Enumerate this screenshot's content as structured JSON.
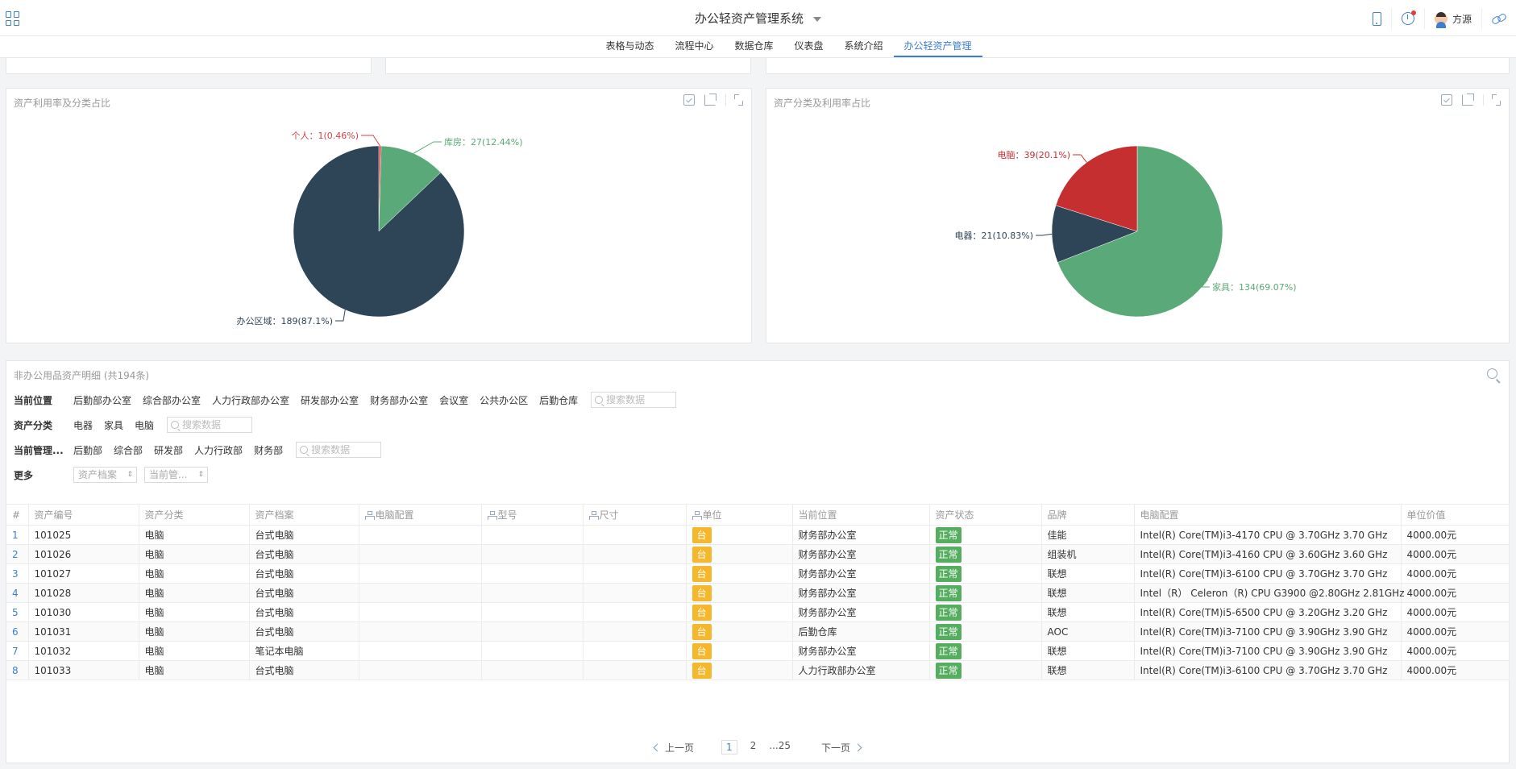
{
  "header": {
    "title": "办公轻资产管理系统",
    "user_name": "方源",
    "more_label": "🔗"
  },
  "nav": {
    "tabs": [
      {
        "label": "表格与动态"
      },
      {
        "label": "流程中心"
      },
      {
        "label": "数据仓库"
      },
      {
        "label": "仪表盘"
      },
      {
        "label": "系统介绍"
      },
      {
        "label": "办公轻资产管理"
      }
    ],
    "active_index": 5
  },
  "colors": {
    "accent": "#3d7fcf",
    "pie_dark": "#2e4457",
    "pie_green": "#5aa978",
    "pie_red": "#c52f2f",
    "unit_tag": "#f5b72b",
    "status_tag": "#55ae60"
  },
  "cards": {
    "left": {
      "title": "资产利用率及分类占比",
      "chart_data": {
        "type": "pie",
        "slices": [
          {
            "name": "个人",
            "value": 1,
            "label": "个人：1(0.46%)",
            "color": "#d14545"
          },
          {
            "name": "库房",
            "value": 27,
            "label": "库房：27(12.44%)",
            "color": "#5aa978"
          },
          {
            "name": "办公区域",
            "value": 189,
            "label": "办公区域：189(87.1%)",
            "color": "#2e4457"
          }
        ]
      }
    },
    "right": {
      "title": "资产分类及利用率占比",
      "chart_data": {
        "type": "pie",
        "slices": [
          {
            "name": "家具",
            "value": 134,
            "label": "家具：134(69.07%)",
            "color": "#5aa978"
          },
          {
            "name": "电器",
            "value": 21,
            "label": "电器：21(10.83%)",
            "color": "#2e4457"
          },
          {
            "name": "电脑",
            "value": 39,
            "label": "电脑：39(20.1%)",
            "color": "#c52f2f"
          }
        ]
      }
    }
  },
  "detail": {
    "title": "非办公用品资产明细 (共194条)",
    "filters": {
      "location": {
        "label": "当前位置",
        "options": [
          "后勤部办公室",
          "综合部办公室",
          "人力行政部办公室",
          "研发部办公室",
          "财务部办公室",
          "会议室",
          "公共办公区",
          "后勤仓库"
        ],
        "placeholder": "搜索数据"
      },
      "category": {
        "label": "资产分类",
        "options": [
          "电器",
          "家具",
          "电脑"
        ],
        "placeholder": "搜索数据"
      },
      "manager": {
        "label": "当前管理...",
        "options": [
          "后勤部",
          "综合部",
          "研发部",
          "人力行政部",
          "财务部"
        ],
        "placeholder": "搜索数据"
      },
      "more": {
        "label": "更多",
        "selects": [
          "资产档案",
          "当前管..."
        ]
      }
    },
    "columns": [
      "#",
      "资产编号",
      "资产分类",
      "资产档案",
      "电脑配置",
      "型号",
      "尺寸",
      "单位",
      "当前位置",
      "资产状态",
      "品牌",
      "电脑配置",
      "单位价值"
    ],
    "rows": [
      {
        "idx": "1",
        "code": "101025",
        "cat": "电脑",
        "file": "台式电脑",
        "cfg1": "",
        "model": "",
        "size": "",
        "unit": "台",
        "loc": "财务部办公室",
        "status": "正常",
        "brand": "佳能",
        "cfg": "Intel(R) Core(TM)i3-4170 CPU @ 3.70GHz 3.70 GHz",
        "price": "4000.00元"
      },
      {
        "idx": "2",
        "code": "101026",
        "cat": "电脑",
        "file": "台式电脑",
        "cfg1": "",
        "model": "",
        "size": "",
        "unit": "台",
        "loc": "财务部办公室",
        "status": "正常",
        "brand": "组装机",
        "cfg": "Intel(R) Core(TM)i3-4160 CPU @ 3.60GHz 3.60 GHz",
        "price": "4000.00元"
      },
      {
        "idx": "3",
        "code": "101027",
        "cat": "电脑",
        "file": "台式电脑",
        "cfg1": "",
        "model": "",
        "size": "",
        "unit": "台",
        "loc": "财务部办公室",
        "status": "正常",
        "brand": "联想",
        "cfg": "Intel(R) Core(TM)i3-6100 CPU @ 3.70GHz 3.70 GHz",
        "price": "4000.00元"
      },
      {
        "idx": "4",
        "code": "101028",
        "cat": "电脑",
        "file": "台式电脑",
        "cfg1": "",
        "model": "",
        "size": "",
        "unit": "台",
        "loc": "财务部办公室",
        "status": "正常",
        "brand": "联想",
        "cfg": "Intel（R） Celeron（R) CPU G3900 @2.80GHz 2.81GHz",
        "price": "4000.00元"
      },
      {
        "idx": "5",
        "code": "101030",
        "cat": "电脑",
        "file": "台式电脑",
        "cfg1": "",
        "model": "",
        "size": "",
        "unit": "台",
        "loc": "财务部办公室",
        "status": "正常",
        "brand": "联想",
        "cfg": "Intel(R) Core(TM)i5-6500 CPU @ 3.20GHz 3.20 GHz",
        "price": "4000.00元"
      },
      {
        "idx": "6",
        "code": "101031",
        "cat": "电脑",
        "file": "台式电脑",
        "cfg1": "",
        "model": "",
        "size": "",
        "unit": "台",
        "loc": "后勤仓库",
        "status": "正常",
        "brand": "AOC",
        "cfg": "Intel(R) Core(TM)i3-7100 CPU @ 3.90GHz 3.90 GHz",
        "price": "4000.00元"
      },
      {
        "idx": "7",
        "code": "101032",
        "cat": "电脑",
        "file": "笔记本电脑",
        "cfg1": "",
        "model": "",
        "size": "",
        "unit": "台",
        "loc": "财务部办公室",
        "status": "正常",
        "brand": "联想",
        "cfg": "Intel(R) Core(TM)i3-7100 CPU @ 3.90GHz 3.90 GHz",
        "price": "4000.00元"
      },
      {
        "idx": "8",
        "code": "101033",
        "cat": "电脑",
        "file": "台式电脑",
        "cfg1": "",
        "model": "",
        "size": "",
        "unit": "台",
        "loc": "人力行政部办公室",
        "status": "正常",
        "brand": "联想",
        "cfg": "Intel(R) Core(TM)i3-6100 CPU @ 3.70GHz 3.70 GHz",
        "price": "4000.00元"
      }
    ],
    "pager": {
      "prev": "上一页",
      "next": "下一页",
      "pages": [
        "1",
        "2",
        "...25"
      ],
      "current": "1"
    }
  }
}
